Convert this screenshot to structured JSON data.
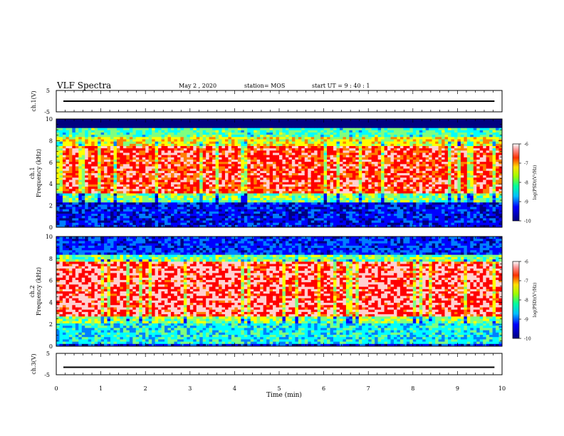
{
  "header": {
    "title": "VLF Spectra",
    "date": "May 2 , 2020",
    "station": "station= MOS",
    "start": "start UT = 9 : 40 : 1"
  },
  "chart_data": [
    {
      "type": "line",
      "ylabel": "ch.1(V)",
      "ylim": [
        -5,
        5
      ],
      "yticks": [
        "5",
        "-5"
      ],
      "series": [
        {
          "x": [
            0,
            9.83
          ],
          "values": [
            0,
            0
          ]
        }
      ]
    },
    {
      "type": "heatmap",
      "ylabel_1": "ch.1",
      "ylabel_2": "Frequency (kHz)",
      "ylim": [
        0,
        10
      ],
      "yticks": [
        "0",
        "2",
        "4",
        "6",
        "8",
        "10"
      ],
      "xlim": [
        0,
        10
      ],
      "colorbar": {
        "label": "log(PSD)(V²/Hz)",
        "range": [
          -10,
          -6
        ],
        "ticks": [
          "-6",
          "-7",
          "-8",
          "-9",
          "-10"
        ]
      }
    },
    {
      "type": "heatmap",
      "ylabel_1": "ch.2",
      "ylabel_2": "Frequency (kHz)",
      "ylim": [
        0,
        10
      ],
      "yticks": [
        "0",
        "2",
        "4",
        "6",
        "8",
        "10"
      ],
      "xlim": [
        0,
        10
      ],
      "colorbar": {
        "label": "log(PSD)(V²/Hz)",
        "range": [
          -10,
          -6
        ],
        "ticks": [
          "-6",
          "-7",
          "-8",
          "-9",
          "-10"
        ]
      }
    },
    {
      "type": "line",
      "ylabel": "ch.3(V)",
      "ylim": [
        -5,
        5
      ],
      "yticks": [
        "5",
        "-5"
      ],
      "series": [
        {
          "x": [
            0,
            9.83
          ],
          "values": [
            -1.5,
            -1.5
          ]
        }
      ]
    }
  ],
  "x_axis": {
    "label": "Time (min)",
    "ticks": [
      "0",
      "1",
      "2",
      "3",
      "4",
      "5",
      "6",
      "7",
      "8",
      "9",
      "10"
    ],
    "xlim": [
      0,
      10
    ]
  },
  "colors": {
    "ramp": [
      "#00007f",
      "#0000ff",
      "#007fff",
      "#00ffff",
      "#7fff7f",
      "#ffff00",
      "#ff7f00",
      "#ff0000",
      "#ffd0d0",
      "#ffffff"
    ]
  }
}
